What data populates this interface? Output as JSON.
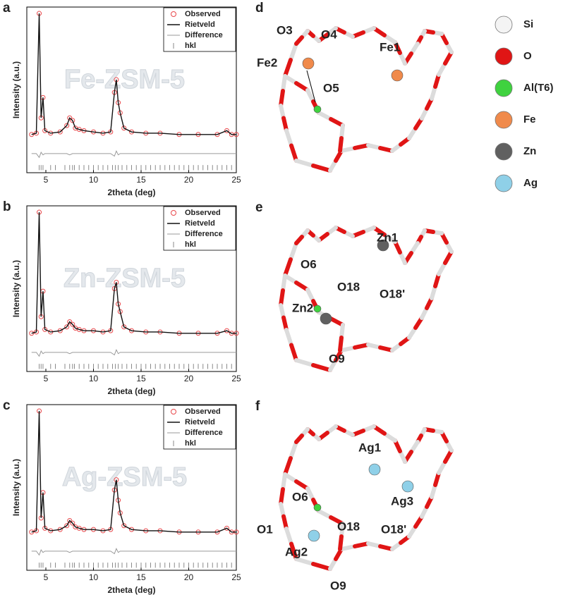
{
  "chart_data": [
    {
      "type": "line",
      "panel": "a",
      "annotation": "Fe-ZSM-5",
      "x_label": "2theta (deg)",
      "y_label": "Intensity (a.u.)",
      "xlim": [
        3,
        25
      ],
      "xticks": [
        5,
        10,
        15,
        20,
        25
      ],
      "ylim": [
        -25,
        105
      ],
      "x": [
        3.5,
        4.0,
        4.3,
        4.5,
        4.7,
        4.9,
        5.5,
        6.5,
        7.2,
        7.5,
        7.8,
        8.1,
        8.5,
        9.0,
        10.0,
        11.0,
        11.8,
        12.2,
        12.4,
        12.6,
        12.8,
        13.2,
        14.0,
        15.5,
        17.0,
        19.0,
        21.0,
        23.0,
        24.0,
        24.5,
        25.0
      ],
      "series": [
        {
          "name": "Observed",
          "color": "#e8474a",
          "values": [
            5,
            6,
            100,
            18,
            34,
            8,
            6,
            7,
            12,
            18,
            16,
            10,
            9,
            8,
            7,
            6,
            7,
            38,
            48,
            30,
            22,
            10,
            7,
            6,
            6,
            5,
            5,
            5,
            8,
            5,
            5
          ]
        },
        {
          "name": "Rietveld",
          "color": "#111111",
          "values": [
            5,
            6,
            100,
            18,
            34,
            8,
            6,
            7,
            12,
            18,
            16,
            10,
            9,
            8,
            7,
            6,
            7,
            38,
            48,
            30,
            22,
            10,
            7,
            6,
            6,
            5,
            5,
            5,
            8,
            5,
            5
          ]
        },
        {
          "name": "Difference",
          "color": "#9a9a9a",
          "values": [
            -10,
            -10,
            -13,
            -9,
            -11,
            -10,
            -10,
            -10,
            -10,
            -11,
            -10,
            -10,
            -10,
            -10,
            -10,
            -10,
            -10,
            -12,
            -8,
            -11,
            -10,
            -10,
            -10,
            -10,
            -10,
            -10,
            -10,
            -10,
            -10,
            -10,
            -10
          ]
        }
      ],
      "hkl": {
        "name": "hkl",
        "color": "#8a8a8a",
        "x": [
          4.3,
          4.5,
          4.7,
          5.5,
          6.0,
          7.0,
          7.5,
          7.8,
          8.0,
          8.5,
          9.0,
          9.5,
          10.0,
          10.5,
          11.0,
          11.5,
          12.0,
          12.3,
          12.6,
          13.0,
          13.5,
          14.0,
          14.5,
          15.0,
          15.5,
          16.0,
          16.5,
          17.0,
          17.5,
          18.0,
          18.5,
          19.0,
          19.5,
          20.0,
          20.5,
          21.0,
          21.5,
          22.0,
          22.5,
          23.0,
          23.5,
          24.0,
          24.5
        ]
      }
    },
    {
      "type": "line",
      "panel": "b",
      "annotation": "Zn-ZSM-5",
      "x_label": "2theta (deg)",
      "y_label": "Intensity (a.u.)",
      "xlim": [
        3,
        25
      ],
      "xticks": [
        5,
        10,
        15,
        20,
        25
      ],
      "ylim": [
        -25,
        105
      ],
      "x": [
        3.5,
        4.0,
        4.3,
        4.5,
        4.7,
        4.9,
        5.5,
        6.5,
        7.2,
        7.5,
        7.8,
        8.1,
        8.5,
        9.0,
        10.0,
        11.0,
        11.8,
        12.2,
        12.4,
        12.6,
        12.8,
        13.2,
        14.0,
        15.5,
        17.0,
        19.0,
        21.0,
        23.0,
        24.0,
        24.5,
        25.0
      ],
      "series": [
        {
          "name": "Observed",
          "color": "#e8474a",
          "values": [
            5,
            6,
            100,
            18,
            38,
            8,
            6,
            7,
            10,
            14,
            12,
            9,
            8,
            7,
            7,
            6,
            7,
            40,
            45,
            28,
            22,
            10,
            7,
            6,
            6,
            5,
            5,
            5,
            7,
            5,
            5
          ]
        },
        {
          "name": "Rietveld",
          "color": "#111111",
          "values": [
            5,
            6,
            100,
            18,
            38,
            8,
            6,
            7,
            10,
            14,
            12,
            9,
            8,
            7,
            7,
            6,
            7,
            40,
            45,
            28,
            22,
            10,
            7,
            6,
            6,
            5,
            5,
            5,
            7,
            5,
            5
          ]
        },
        {
          "name": "Difference",
          "color": "#9a9a9a",
          "values": [
            -10,
            -10,
            -13,
            -9,
            -11,
            -10,
            -10,
            -10,
            -10,
            -11,
            -10,
            -10,
            -10,
            -10,
            -10,
            -10,
            -10,
            -12,
            -8,
            -11,
            -10,
            -10,
            -10,
            -10,
            -10,
            -10,
            -10,
            -10,
            -10,
            -10,
            -10
          ]
        }
      ],
      "hkl": {
        "name": "hkl",
        "color": "#8a8a8a",
        "x": [
          4.3,
          4.5,
          4.7,
          5.5,
          6.0,
          7.0,
          7.5,
          7.8,
          8.0,
          8.5,
          9.0,
          9.5,
          10.0,
          10.5,
          11.0,
          11.5,
          12.0,
          12.3,
          12.6,
          13.0,
          13.5,
          14.0,
          14.5,
          15.0,
          15.5,
          16.0,
          16.5,
          17.0,
          17.5,
          18.0,
          18.5,
          19.0,
          19.5,
          20.0,
          20.5,
          21.0,
          21.5,
          22.0,
          22.5,
          23.0,
          23.5,
          24.0,
          24.5
        ]
      }
    },
    {
      "type": "line",
      "panel": "c",
      "annotation": "Ag-ZSM-5",
      "x_label": "2theta (deg)",
      "y_label": "Intensity (a.u.)",
      "xlim": [
        3,
        25
      ],
      "xticks": [
        5,
        10,
        15,
        20,
        25
      ],
      "ylim": [
        -25,
        105
      ],
      "x": [
        3.5,
        4.0,
        4.3,
        4.5,
        4.7,
        4.9,
        5.5,
        6.5,
        7.2,
        7.5,
        7.8,
        8.1,
        8.5,
        9.0,
        10.0,
        11.0,
        11.8,
        12.2,
        12.4,
        12.6,
        12.8,
        13.2,
        14.0,
        15.5,
        17.0,
        19.0,
        21.0,
        23.0,
        24.0,
        24.5,
        25.0
      ],
      "series": [
        {
          "name": "Observed",
          "color": "#e8474a",
          "values": [
            5,
            6,
            100,
            16,
            36,
            8,
            6,
            7,
            10,
            14,
            12,
            9,
            8,
            7,
            7,
            6,
            7,
            38,
            46,
            30,
            20,
            10,
            7,
            6,
            6,
            5,
            5,
            5,
            8,
            5,
            5
          ]
        },
        {
          "name": "Rietveld",
          "color": "#111111",
          "values": [
            5,
            6,
            100,
            16,
            36,
            8,
            6,
            7,
            10,
            14,
            12,
            9,
            8,
            7,
            7,
            6,
            7,
            38,
            46,
            30,
            20,
            10,
            7,
            6,
            6,
            5,
            5,
            5,
            8,
            5,
            5
          ]
        },
        {
          "name": "Difference",
          "color": "#9a9a9a",
          "values": [
            -10,
            -10,
            -13,
            -9,
            -11,
            -10,
            -10,
            -10,
            -10,
            -11,
            -10,
            -10,
            -10,
            -10,
            -10,
            -10,
            -10,
            -12,
            -8,
            -11,
            -10,
            -10,
            -10,
            -10,
            -10,
            -10,
            -10,
            -10,
            -10,
            -10,
            -10
          ]
        }
      ],
      "hkl": {
        "name": "hkl",
        "color": "#8a8a8a",
        "x": [
          4.3,
          4.5,
          4.7,
          5.5,
          6.0,
          7.0,
          7.5,
          7.8,
          8.0,
          8.5,
          9.0,
          9.5,
          10.0,
          10.5,
          11.0,
          11.5,
          12.0,
          12.3,
          12.6,
          13.0,
          13.5,
          14.0,
          14.5,
          15.0,
          15.5,
          16.0,
          16.5,
          17.0,
          17.5,
          18.0,
          18.5,
          19.0,
          19.5,
          20.0,
          20.5,
          21.0,
          21.5,
          22.0,
          22.5,
          23.0,
          23.5,
          24.0,
          24.5
        ]
      }
    }
  ],
  "structures": [
    {
      "panel": "d",
      "labels": [
        "O3",
        "O4",
        "Fe2",
        "O5",
        "Fe1"
      ]
    },
    {
      "panel": "e",
      "labels": [
        "Zn1",
        "O6",
        "O18",
        "Zn2",
        "O18'",
        "O9"
      ]
    },
    {
      "panel": "f",
      "labels": [
        "Ag1",
        "Ag3",
        "O6",
        "O18",
        "O1",
        "Ag2",
        "O18'",
        "O9"
      ]
    }
  ],
  "atom_legend": [
    {
      "name": "Si",
      "color": "#f4f4f4"
    },
    {
      "name": "O",
      "color": "#e01515"
    },
    {
      "name": "Al(T6)",
      "color": "#3fd23f"
    },
    {
      "name": "Fe",
      "color": "#f08a4b"
    },
    {
      "name": "Zn",
      "color": "#606060"
    },
    {
      "name": "Ag",
      "color": "#8fd0e8"
    }
  ]
}
